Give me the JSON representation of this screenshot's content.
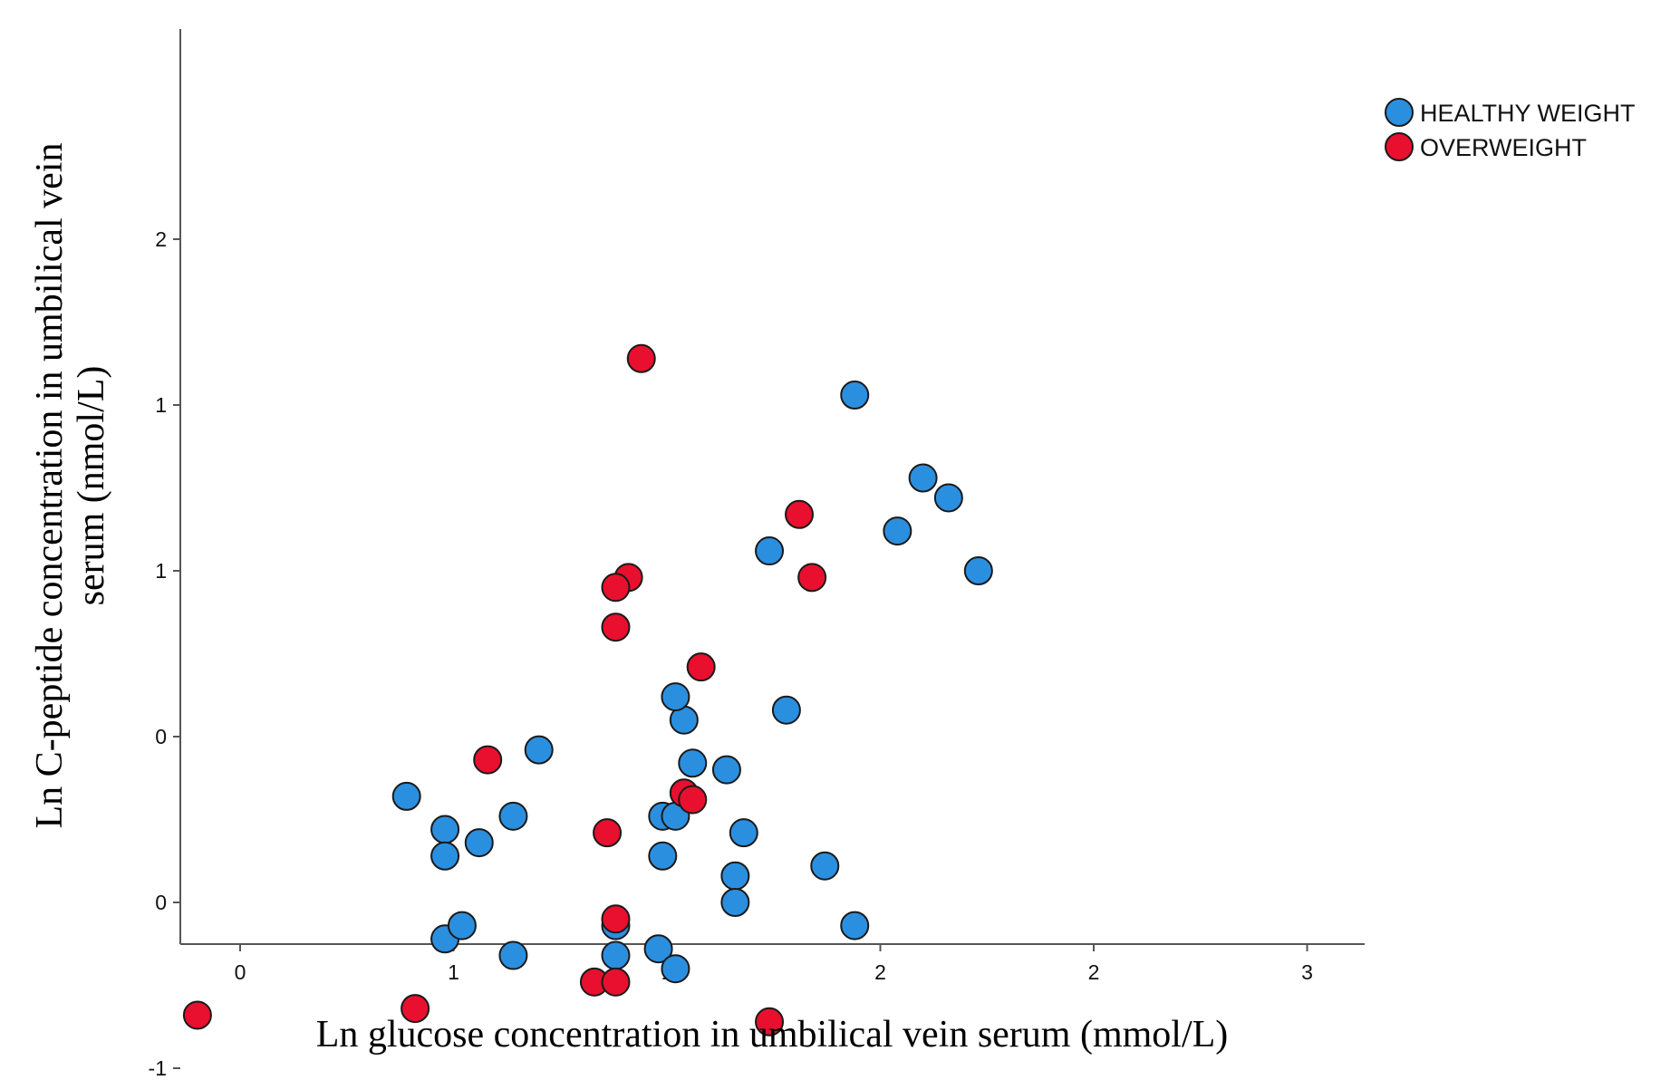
{
  "chart_data": {
    "type": "scatter",
    "title": "",
    "xlabel": "Ln glucose concentration in umbilical vein serum (mmol/L)",
    "ylabel_lines": [
      "Ln C-peptide concentration in umbilical vein",
      "serum (nmol/L)"
    ],
    "x_ticks": [
      {
        "value": 0.0,
        "label": "0"
      },
      {
        "value": 0.5,
        "label": "1"
      },
      {
        "value": 1.0,
        "label": "1"
      },
      {
        "value": 1.5,
        "label": "2"
      },
      {
        "value": 2.0,
        "label": "2"
      },
      {
        "value": 2.5,
        "label": "3"
      }
    ],
    "y_ticks": [
      {
        "value": -1.0,
        "label": "-1"
      },
      {
        "value": -0.5,
        "label": "0"
      },
      {
        "value": 0.0,
        "label": "0"
      },
      {
        "value": 0.5,
        "label": "1"
      },
      {
        "value": 1.0,
        "label": "1"
      },
      {
        "value": 1.5,
        "label": "2"
      }
    ],
    "xlim": [
      -0.14,
      2.64
    ],
    "ylim": [
      -1.12,
      1.65
    ],
    "grid": false,
    "legend_position": "top-right",
    "series": [
      {
        "name": "HEALTHY WEIGHT",
        "color": "#2b8fe0",
        "points": [
          {
            "x": 1.04,
            "y": 0.05
          },
          {
            "x": 1.44,
            "y": 1.03
          },
          {
            "x": 1.24,
            "y": 0.56
          },
          {
            "x": 1.6,
            "y": 0.78
          },
          {
            "x": 1.66,
            "y": 0.72
          },
          {
            "x": 1.54,
            "y": 0.62
          },
          {
            "x": 1.73,
            "y": 0.5
          },
          {
            "x": 0.7,
            "y": -0.04
          },
          {
            "x": 0.39,
            "y": -0.18
          },
          {
            "x": 0.99,
            "y": -0.24
          },
          {
            "x": 1.02,
            "y": 0.12
          },
          {
            "x": 1.06,
            "y": -0.08
          },
          {
            "x": 1.14,
            "y": -0.1
          },
          {
            "x": 0.48,
            "y": -0.28
          },
          {
            "x": 0.56,
            "y": -0.32
          },
          {
            "x": 0.64,
            "y": -0.24
          },
          {
            "x": 1.28,
            "y": 0.08
          },
          {
            "x": 1.02,
            "y": -0.24
          },
          {
            "x": 1.18,
            "y": -0.29
          },
          {
            "x": 1.16,
            "y": -0.42
          },
          {
            "x": 0.99,
            "y": -0.36
          },
          {
            "x": 1.37,
            "y": -0.39
          },
          {
            "x": 1.16,
            "y": -0.5
          },
          {
            "x": 1.44,
            "y": -0.57
          },
          {
            "x": 0.98,
            "y": -0.64
          },
          {
            "x": 0.48,
            "y": -0.36
          },
          {
            "x": 0.48,
            "y": -0.61
          },
          {
            "x": 0.52,
            "y": -0.57
          },
          {
            "x": 0.64,
            "y": -0.66
          },
          {
            "x": 0.88,
            "y": -0.57
          },
          {
            "x": 0.88,
            "y": -0.66
          },
          {
            "x": 1.02,
            "y": -0.7
          }
        ]
      },
      {
        "name": "OVERWEIGHT",
        "color": "#e8102e",
        "points": [
          {
            "x": 0.94,
            "y": 1.14
          },
          {
            "x": 1.31,
            "y": 0.67
          },
          {
            "x": 1.34,
            "y": 0.48
          },
          {
            "x": 0.91,
            "y": 0.48
          },
          {
            "x": 0.88,
            "y": 0.45
          },
          {
            "x": 0.88,
            "y": 0.33
          },
          {
            "x": 1.08,
            "y": 0.21
          },
          {
            "x": 0.58,
            "y": -0.07
          },
          {
            "x": 1.04,
            "y": -0.17
          },
          {
            "x": 1.06,
            "y": -0.19
          },
          {
            "x": 0.86,
            "y": -0.29
          },
          {
            "x": 0.88,
            "y": -0.55
          },
          {
            "x": 0.83,
            "y": -0.74
          },
          {
            "x": 0.88,
            "y": -0.74
          },
          {
            "x": 0.41,
            "y": -0.82
          },
          {
            "x": 1.24,
            "y": -0.86
          },
          {
            "x": -0.1,
            "y": -0.84
          }
        ]
      }
    ]
  }
}
